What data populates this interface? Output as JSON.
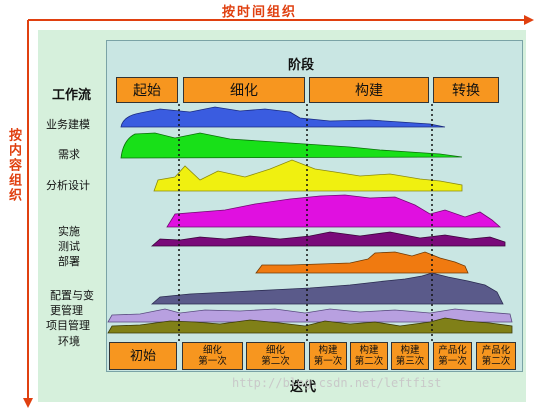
{
  "top_axis_label": "按时间组织",
  "left_axis_label": "按内容组织",
  "phase_header": "阶段",
  "workflow_header": "工作流",
  "phases": [
    "起始",
    "细化",
    "构建",
    "转换"
  ],
  "workflows": [
    "业务建模",
    "需求",
    "分析设计",
    "实施\n测试\n部署",
    "配置与变\n更管理",
    "项目管理",
    "环境"
  ],
  "iterations": [
    "初始",
    "细化\n第一次",
    "细化\n第二次",
    "构建\n第一次",
    "构建\n第二次",
    "构建\n第三次",
    "产品化\n第一次",
    "产品化\n第二次"
  ],
  "iteration_footer": "迭代",
  "watermark": "http://blog.csdn.net/leftfist",
  "colors": {
    "axis": "#e04010",
    "phase_fill": "#f7961f",
    "business_modeling": "#3a5ce0",
    "requirements": "#18e018",
    "analysis_design": "#f0f010",
    "implementation": "#e010e0",
    "test": "#7a0a7a",
    "deployment": "#f07a10",
    "config_mgmt": "#5a5a8a",
    "project_mgmt": "#b8a0e0",
    "environment": "#808018"
  }
}
